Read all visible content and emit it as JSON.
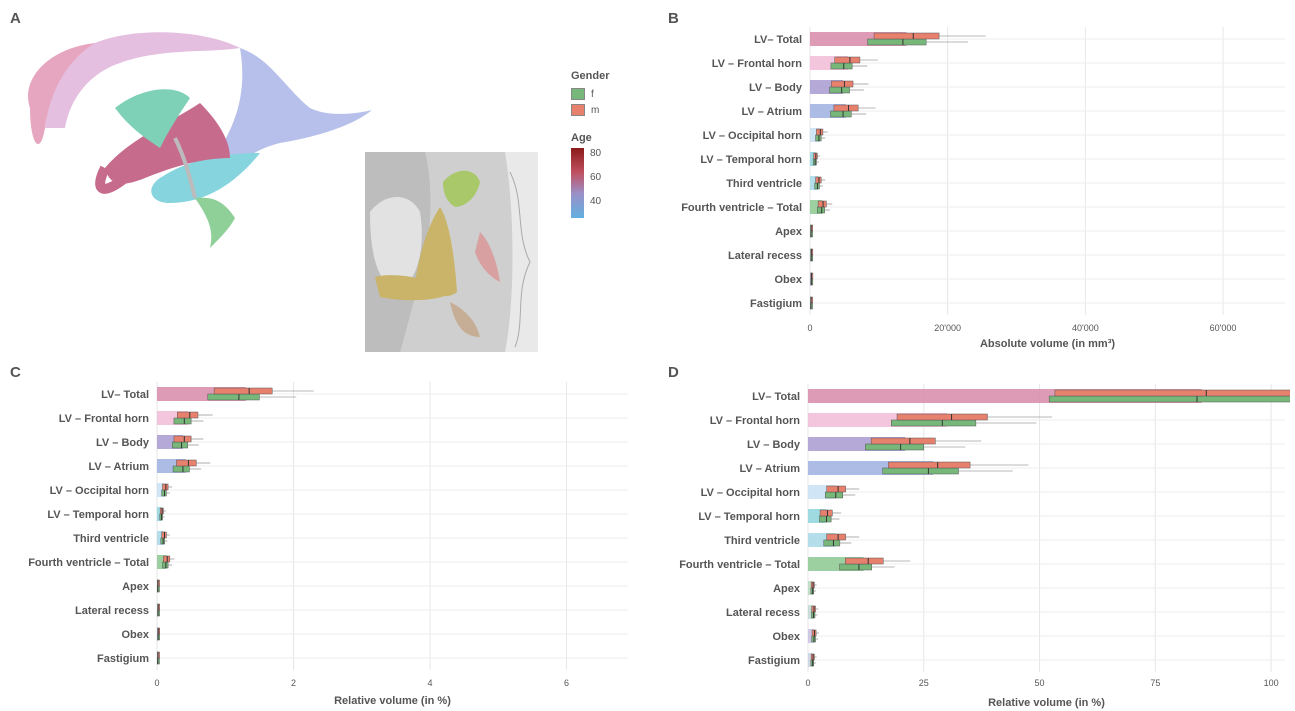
{
  "panels": {
    "a": "A",
    "b": "B",
    "c": "C",
    "d": "D"
  },
  "legend": {
    "gender_title": "Gender",
    "gender_items": [
      {
        "label": "f",
        "color": "#77b87a"
      },
      {
        "label": "m",
        "color": "#e8806e"
      }
    ],
    "age_title": "Age",
    "age_ticks": [
      "80",
      "60",
      "40"
    ]
  },
  "colors": {
    "female": "#77b87a",
    "male": "#e8806e",
    "structures": [
      "#d88aa8",
      "#f2bcd8",
      "#a89ad0",
      "#9fb0e0",
      "#c8e2f4",
      "#8fd4dc",
      "#a8d8e8",
      "#8cc890",
      "#b8d8c0",
      "#c0d8d0",
      "#c8c0e0",
      "#c8d0e0"
    ]
  },
  "chart_data": [
    {
      "panel": "B",
      "type": "bar",
      "categories": [
        "LV– Total",
        "LV – Frontal horn",
        "LV – Body",
        "LV – Atrium",
        "LV – Occipital horn",
        "LV – Temporal horn",
        "Third ventricle",
        "Fourth ventricle – Total",
        "Apex",
        "Lateral recess",
        "Obex",
        "Fastigium"
      ],
      "values": [
        14000,
        5500,
        4800,
        5200,
        1400,
        800,
        1200,
        1800,
        150,
        180,
        200,
        140
      ],
      "series": [
        {
          "name": "f",
          "values": [
            13500,
            4900,
            4600,
            4800,
            1300,
            750,
            1100,
            1700,
            140,
            170,
            190,
            130
          ]
        },
        {
          "name": "m",
          "values": [
            15000,
            5800,
            5000,
            5600,
            1500,
            850,
            1300,
            1900,
            160,
            190,
            210,
            150
          ]
        }
      ],
      "xlabel": "Absolute volume (in mm³)",
      "ylabel": "",
      "xlim": [
        0,
        69000
      ],
      "xticks": [
        "0",
        "20'000",
        "40'000",
        "60'000"
      ],
      "xtick_values": [
        0,
        20000,
        40000,
        60000
      ]
    },
    {
      "panel": "C",
      "type": "bar",
      "categories": [
        "LV– Total",
        "LV – Frontal horn",
        "LV – Body",
        "LV – Atrium",
        "LV – Occipital horn",
        "LV – Temporal horn",
        "Third ventricle",
        "Fourth ventricle – Total",
        "Apex",
        "Lateral recess",
        "Obex",
        "Fastigium"
      ],
      "values": [
        1.3,
        0.45,
        0.38,
        0.42,
        0.12,
        0.07,
        0.1,
        0.14,
        0.012,
        0.015,
        0.016,
        0.012
      ],
      "series": [
        {
          "name": "f",
          "values": [
            1.2,
            0.4,
            0.36,
            0.38,
            0.11,
            0.065,
            0.09,
            0.13,
            0.011,
            0.014,
            0.015,
            0.011
          ]
        },
        {
          "name": "m",
          "values": [
            1.35,
            0.48,
            0.4,
            0.46,
            0.13,
            0.075,
            0.11,
            0.15,
            0.013,
            0.016,
            0.017,
            0.013
          ]
        }
      ],
      "xlabel": "Relative volume (in %)",
      "ylabel": "",
      "xlim": [
        0,
        6.9
      ],
      "xticks": [
        "0",
        "2",
        "4",
        "6"
      ],
      "xtick_values": [
        0,
        2,
        4,
        6
      ]
    },
    {
      "panel": "D",
      "type": "bar",
      "categories": [
        "LV– Total",
        "LV – Frontal horn",
        "LV – Body",
        "LV – Atrium",
        "LV – Occipital horn",
        "LV – Temporal horn",
        "Third ventricle",
        "Fourth ventricle – Total",
        "Apex",
        "Lateral recess",
        "Obex",
        "Fastigium"
      ],
      "values": [
        85,
        30,
        21,
        27,
        6,
        4,
        6,
        12,
        1,
        1.2,
        1.3,
        1
      ],
      "series": [
        {
          "name": "f",
          "values": [
            84,
            29,
            20,
            26,
            6,
            4,
            5.5,
            11,
            1,
            1.2,
            1.3,
            1
          ]
        },
        {
          "name": "m",
          "values": [
            86,
            31,
            22,
            28,
            6.5,
            4.2,
            6.5,
            13,
            1.1,
            1.3,
            1.4,
            1.1
          ]
        }
      ],
      "xlabel": "Relative volume (in %)",
      "ylabel": "",
      "xlim": [
        0,
        103
      ],
      "xticks": [
        "0",
        "25",
        "50",
        "75",
        "100"
      ],
      "xtick_values": [
        0,
        25,
        50,
        75,
        100
      ]
    }
  ]
}
